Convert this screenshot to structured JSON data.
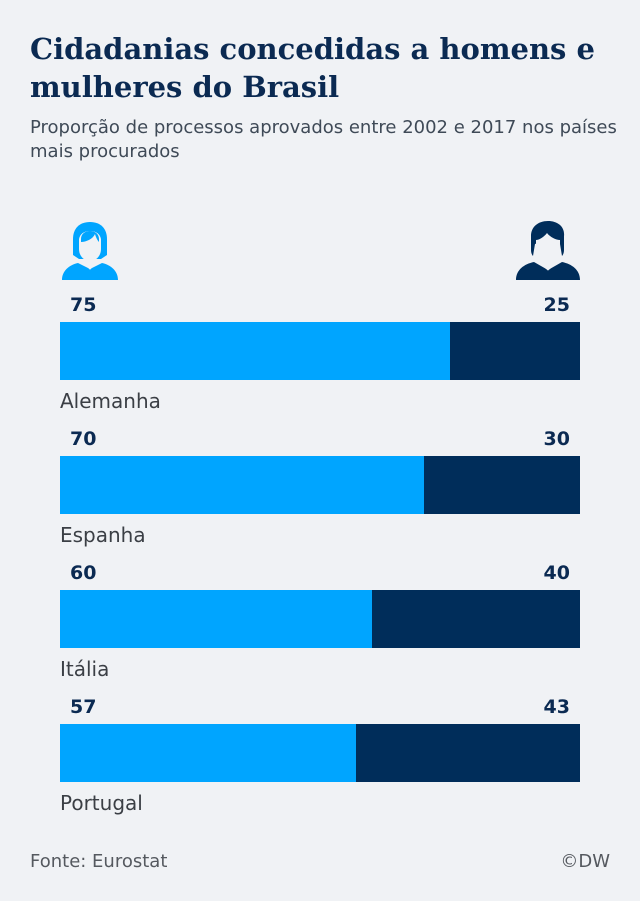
{
  "header": {
    "title": "Cidadanias concedidas a homens e mulheres do Brasil",
    "subtitle": "Proporção de processos aprovados entre 2002 e 2017 nos países mais procurados"
  },
  "legend": {
    "women_icon": "female-person-icon",
    "men_icon": "male-person-icon"
  },
  "colors": {
    "women": "#00a5ff",
    "men": "#002d5a",
    "background": "#f0f2f5"
  },
  "chart_data": {
    "type": "bar",
    "orientation": "horizontal-stacked-100",
    "categories": [
      "Alemanha",
      "Espanha",
      "Itália",
      "Portugal"
    ],
    "series": [
      {
        "values": [
          75,
          70,
          60,
          57
        ]
      },
      {
        "values": [
          25,
          30,
          40,
          43
        ]
      }
    ],
    "xlim": [
      0,
      100
    ],
    "grid": false
  },
  "footer": {
    "source": "Fonte: Eurostat",
    "credit": "©DW"
  }
}
